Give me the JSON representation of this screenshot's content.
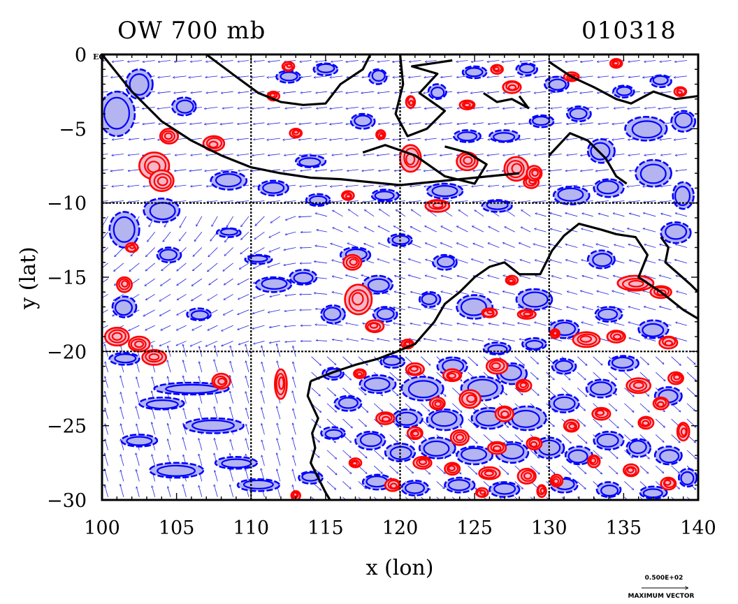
{
  "title_left": "OW 700 mb",
  "title_right": "010318",
  "chart_data": {
    "type": "contour-vector-map",
    "xlabel": "x (lon)",
    "ylabel": "y (lat)",
    "xlim": [
      100,
      140
    ],
    "ylim": [
      -30,
      0
    ],
    "x_ticks": [
      100,
      105,
      110,
      115,
      120,
      125,
      130,
      135,
      140
    ],
    "y_ticks": [
      0,
      -5,
      -10,
      -15,
      -20,
      -25,
      -30
    ],
    "y_tick_labels": [
      "0",
      "−5",
      "−10",
      "−15",
      "−20",
      "−25",
      "−30"
    ],
    "grid_lon": [
      110,
      120,
      130
    ],
    "grid_lat": [
      -10,
      -20
    ],
    "eq_label": "EQ",
    "legend": {
      "vector_value": "0.500E+02",
      "vector_label": "MAXIMUM VECTOR"
    },
    "colors": {
      "positive_contour": "#ff0000",
      "positive_fill": "#f4b8c8",
      "negative_contour": "#0000ff",
      "negative_fill": "#b4b4f0",
      "vectors": "#2020e0",
      "coastline": "#000000"
    },
    "coastlines": [
      [
        [
          100,
          0
        ],
        [
          102,
          -2.5
        ],
        [
          104,
          -4.5
        ],
        [
          106,
          -5.8
        ],
        [
          108,
          -6.8
        ],
        [
          110,
          -7.6
        ],
        [
          112,
          -8.0
        ],
        [
          114,
          -8.3
        ],
        [
          116,
          -8.4
        ],
        [
          118,
          -8.6
        ],
        [
          120,
          -8.8
        ],
        [
          122,
          -8.6
        ],
        [
          124,
          -8.4
        ],
        [
          126,
          -8.2
        ],
        [
          128,
          -8.0
        ]
      ],
      [
        [
          107,
          0
        ],
        [
          109,
          -1.5
        ],
        [
          110.5,
          -2.6
        ],
        [
          112,
          -3.2
        ],
        [
          113.5,
          -3.4
        ],
        [
          115,
          -3.3
        ],
        [
          116,
          -2.0
        ],
        [
          117.5,
          -1.0
        ],
        [
          118,
          0
        ]
      ],
      [
        [
          117.5,
          -6.6
        ],
        [
          119,
          -6.1
        ],
        [
          121,
          -6.8
        ],
        [
          123,
          -8.2
        ],
        [
          125,
          -8.7
        ],
        [
          125.8,
          -7.4
        ],
        [
          124.5,
          -6.6
        ],
        [
          123,
          -6.2
        ]
      ],
      [
        [
          120,
          0
        ],
        [
          120.2,
          -2
        ],
        [
          119.7,
          -4
        ],
        [
          120.5,
          -5.5
        ],
        [
          121.8,
          -5.0
        ],
        [
          123,
          -3.8
        ],
        [
          121.3,
          -2.6
        ],
        [
          122.5,
          -1.3
        ],
        [
          120.8,
          -0.8
        ],
        [
          123.5,
          -0.4
        ]
      ],
      [
        [
          125.6,
          -2.6
        ],
        [
          126.5,
          -3.2
        ],
        [
          127.5,
          -3.0
        ],
        [
          128.6,
          -3.6
        ],
        [
          128.0,
          -2.8
        ]
      ],
      [
        [
          130,
          -0.5
        ],
        [
          131.5,
          -1.5
        ],
        [
          133,
          -2.2
        ],
        [
          134.5,
          -3.0
        ],
        [
          135.5,
          -3.3
        ],
        [
          137,
          -2.5
        ],
        [
          138.5,
          -3.0
        ],
        [
          140,
          -2.8
        ]
      ],
      [
        [
          130,
          -6.8
        ],
        [
          131.4,
          -5.3
        ],
        [
          132.6,
          -5.8
        ],
        [
          133.8,
          -7.0
        ],
        [
          134.5,
          -8.2
        ],
        [
          135.2,
          -8.7
        ]
      ],
      [
        [
          114,
          -22
        ],
        [
          113.8,
          -23
        ],
        [
          114.5,
          -24.5
        ],
        [
          114.1,
          -25.5
        ],
        [
          114.3,
          -26.5
        ],
        [
          114,
          -27.5
        ],
        [
          114.5,
          -28.5
        ],
        [
          115,
          -29.5
        ],
        [
          115.3,
          -30
        ]
      ],
      [
        [
          114,
          -22
        ],
        [
          115.5,
          -21.4
        ],
        [
          117,
          -20.9
        ],
        [
          118.5,
          -20.5
        ],
        [
          119.8,
          -20.0
        ],
        [
          121,
          -19.5
        ],
        [
          122.3,
          -18.0
        ],
        [
          123,
          -16.8
        ],
        [
          124,
          -16.0
        ],
        [
          125,
          -15.0
        ],
        [
          126,
          -14.3
        ],
        [
          127,
          -14.0
        ],
        [
          128,
          -14.8
        ],
        [
          129.4,
          -14.8
        ],
        [
          130.2,
          -13.2
        ],
        [
          131,
          -12.2
        ],
        [
          132,
          -11.4
        ],
        [
          133.5,
          -11.8
        ],
        [
          134.5,
          -12.1
        ],
        [
          135.8,
          -12.3
        ],
        [
          136.6,
          -13.5
        ],
        [
          136,
          -15.0
        ],
        [
          137.5,
          -16.0
        ],
        [
          139,
          -17.2
        ],
        [
          140,
          -17.8
        ]
      ],
      [
        [
          137.5,
          -12.3
        ],
        [
          138,
          -13.0
        ],
        [
          137.8,
          -14.0
        ],
        [
          139.5,
          -15.5
        ],
        [
          140,
          -16.0
        ]
      ]
    ],
    "positive_features": [
      [
        103.5,
        -7.5,
        1.0,
        0.9
      ],
      [
        104,
        -8.5,
        0.8,
        0.7
      ],
      [
        107.5,
        -6.0,
        0.7,
        0.5
      ],
      [
        104.5,
        -5.5,
        0.6,
        0.5
      ],
      [
        101.5,
        -15.5,
        0.5,
        0.5
      ],
      [
        101,
        -19.0,
        0.8,
        0.6
      ],
      [
        102.5,
        -19.5,
        0.7,
        0.5
      ],
      [
        103.5,
        -20.4,
        0.8,
        0.5
      ],
      [
        117.2,
        -16.5,
        0.9,
        1.0
      ],
      [
        116.8,
        -14.0,
        0.6,
        0.5
      ],
      [
        118.3,
        -18.3,
        0.6,
        0.4
      ],
      [
        120.7,
        -7.0,
        0.7,
        0.9
      ],
      [
        124.5,
        -7.2,
        0.7,
        0.6
      ],
      [
        127.8,
        -7.7,
        0.8,
        0.8
      ],
      [
        128.8,
        -8.6,
        0.5,
        0.4
      ],
      [
        129,
        -8.0,
        0.5,
        0.5
      ],
      [
        122.5,
        -10.2,
        0.8,
        0.4
      ],
      [
        127.5,
        -2.2,
        0.6,
        0.4
      ],
      [
        124.5,
        -3.4,
        0.5,
        0.3
      ],
      [
        131.5,
        -1.5,
        0.5,
        0.3
      ],
      [
        112,
        -22.2,
        0.4,
        1.0
      ],
      [
        108,
        -22.0,
        0.6,
        0.5
      ],
      [
        120.5,
        -19.5,
        0.4,
        0.3
      ],
      [
        135.8,
        -15.4,
        1.2,
        0.5
      ],
      [
        137.5,
        -16.0,
        0.7,
        0.4
      ],
      [
        132.5,
        -19.2,
        0.9,
        0.5
      ],
      [
        134.5,
        -19.0,
        0.6,
        0.4
      ],
      [
        138,
        -19.4,
        0.6,
        0.4
      ],
      [
        121,
        -21.2,
        0.6,
        0.4
      ],
      [
        123.5,
        -21.6,
        0.6,
        0.4
      ],
      [
        126.5,
        -21.0,
        0.7,
        0.5
      ],
      [
        128.3,
        -22.3,
        0.5,
        0.4
      ],
      [
        122.5,
        -23.5,
        0.5,
        0.4
      ],
      [
        124.7,
        -23.2,
        0.7,
        0.6
      ],
      [
        127,
        -24.2,
        0.6,
        0.5
      ],
      [
        119,
        -24.5,
        0.6,
        0.4
      ],
      [
        121,
        -25.5,
        0.5,
        0.4
      ],
      [
        124,
        -25.8,
        0.6,
        0.5
      ],
      [
        126.5,
        -26.5,
        0.6,
        0.4
      ],
      [
        129,
        -26.2,
        0.5,
        0.4
      ],
      [
        131.5,
        -25.0,
        0.5,
        0.4
      ],
      [
        133.5,
        -24.2,
        0.6,
        0.4
      ],
      [
        136.5,
        -24.8,
        0.5,
        0.4
      ],
      [
        139,
        -25.4,
        0.4,
        0.6
      ],
      [
        137.5,
        -23.5,
        0.5,
        0.4
      ],
      [
        136,
        -22.3,
        0.8,
        0.5
      ],
      [
        138.5,
        -21.8,
        0.5,
        0.4
      ],
      [
        121.5,
        -27.5,
        0.6,
        0.4
      ],
      [
        123.5,
        -27.9,
        0.5,
        0.4
      ],
      [
        126,
        -28.2,
        0.7,
        0.4
      ],
      [
        128.5,
        -28.4,
        0.6,
        0.5
      ],
      [
        130.5,
        -28.7,
        0.4,
        0.4
      ],
      [
        133,
        -27.4,
        0.4,
        0.4
      ],
      [
        135.5,
        -28.0,
        0.5,
        0.4
      ],
      [
        138,
        -28.9,
        0.5,
        0.4
      ],
      [
        119.5,
        -29.0,
        0.5,
        0.4
      ],
      [
        117,
        -27.5,
        0.4,
        0.3
      ],
      [
        117.3,
        -21.5,
        0.4,
        0.3
      ],
      [
        113,
        -29.7,
        0.3,
        0.3
      ],
      [
        125.5,
        -29.5,
        0.4,
        0.3
      ],
      [
        129.5,
        -29.4,
        0.3,
        0.4
      ],
      [
        127.5,
        -15.2,
        0.4,
        0.3
      ],
      [
        128.5,
        -17.5,
        0.6,
        0.3
      ],
      [
        126,
        -17.4,
        0.5,
        0.3
      ],
      [
        130.4,
        -18.8,
        0.3,
        0.3
      ],
      [
        113,
        -5.3,
        0.4,
        0.3
      ],
      [
        112.5,
        -0.8,
        0.4,
        0.3
      ],
      [
        111.5,
        -2.8,
        0.4,
        0.3
      ],
      [
        102,
        -13.0,
        0.4,
        0.3
      ],
      [
        116.5,
        -9.5,
        0.4,
        0.3
      ],
      [
        120.7,
        -3.2,
        0.3,
        0.4
      ],
      [
        118.7,
        -5.4,
        0.3,
        0.3
      ],
      [
        126.5,
        -1.0,
        0.4,
        0.3
      ],
      [
        138.8,
        -2.5,
        0.4,
        0.3
      ],
      [
        134.5,
        -0.6,
        0.4,
        0.3
      ]
    ],
    "negative_features": [
      [
        101,
        -4.0,
        1.2,
        1.5
      ],
      [
        102.5,
        -2.0,
        0.9,
        1.0
      ],
      [
        105.5,
        -3.5,
        0.8,
        0.6
      ],
      [
        108.5,
        -8.5,
        1.2,
        0.6
      ],
      [
        111.5,
        -9.0,
        1.0,
        0.5
      ],
      [
        104,
        -10.5,
        1.2,
        0.8
      ],
      [
        101.5,
        -11.8,
        1.0,
        1.2
      ],
      [
        104.5,
        -13.5,
        0.8,
        0.5
      ],
      [
        101.5,
        -17.0,
        0.8,
        0.7
      ],
      [
        111.5,
        -15.5,
        1.2,
        0.5
      ],
      [
        113.5,
        -15.0,
        0.9,
        0.5
      ],
      [
        117,
        -13.5,
        1.0,
        0.5
      ],
      [
        118.5,
        -15.5,
        1.0,
        0.6
      ],
      [
        119,
        -17.5,
        0.8,
        0.5
      ],
      [
        115.5,
        -17.5,
        0.8,
        0.6
      ],
      [
        123,
        -14.0,
        0.8,
        0.5
      ],
      [
        125,
        -17.0,
        1.2,
        0.8
      ],
      [
        122,
        -16.5,
        0.7,
        0.5
      ],
      [
        129,
        -16.5,
        1.2,
        0.7
      ],
      [
        131,
        -18.5,
        1.0,
        0.6
      ],
      [
        134,
        -17.5,
        0.9,
        0.5
      ],
      [
        137,
        -18.5,
        1.0,
        0.6
      ],
      [
        133.5,
        -13.8,
        0.9,
        0.6
      ],
      [
        138.5,
        -12.0,
        1.0,
        0.7
      ],
      [
        131.5,
        -9.5,
        1.2,
        0.6
      ],
      [
        134,
        -9.0,
        1.0,
        0.6
      ],
      [
        137,
        -8.0,
        1.2,
        0.9
      ],
      [
        139,
        -9.5,
        0.7,
        0.9
      ],
      [
        133.5,
        -6.5,
        0.9,
        0.8
      ],
      [
        136.5,
        -5.0,
        1.4,
        0.8
      ],
      [
        139,
        -4.5,
        0.8,
        0.7
      ],
      [
        132,
        -4.0,
        0.8,
        0.5
      ],
      [
        130.5,
        -2.0,
        0.8,
        0.5
      ],
      [
        135,
        -2.5,
        0.7,
        0.4
      ],
      [
        137.5,
        -1.8,
        0.7,
        0.4
      ],
      [
        124.5,
        -5.5,
        0.9,
        0.4
      ],
      [
        127,
        -5.5,
        1.0,
        0.4
      ],
      [
        129.5,
        -4.5,
        0.8,
        0.4
      ],
      [
        123,
        -9.2,
        1.2,
        0.5
      ],
      [
        126.5,
        -10.2,
        1.0,
        0.4
      ],
      [
        119,
        -9.5,
        0.9,
        0.4
      ],
      [
        114.5,
        -9.8,
        0.8,
        0.4
      ],
      [
        114,
        -7.2,
        1.0,
        0.4
      ],
      [
        112.5,
        -1.5,
        0.8,
        0.4
      ],
      [
        115,
        -1.0,
        0.8,
        0.4
      ],
      [
        117.5,
        -4.5,
        0.8,
        0.5
      ],
      [
        118.5,
        -1.5,
        0.6,
        0.5
      ],
      [
        122.5,
        -2.5,
        0.6,
        0.5
      ],
      [
        125,
        -1.2,
        0.8,
        0.4
      ],
      [
        128.5,
        -1.0,
        0.7,
        0.4
      ],
      [
        101.5,
        -20.5,
        1.0,
        0.4
      ],
      [
        106,
        -22.5,
        2.5,
        0.4
      ],
      [
        104,
        -23.5,
        1.5,
        0.4
      ],
      [
        107.5,
        -25.0,
        2.0,
        0.5
      ],
      [
        102.5,
        -26.0,
        1.2,
        0.4
      ],
      [
        105,
        -28.0,
        1.8,
        0.5
      ],
      [
        109,
        -27.5,
        1.4,
        0.4
      ],
      [
        110.5,
        -29.0,
        1.4,
        0.4
      ],
      [
        114,
        -28.5,
        0.8,
        0.4
      ],
      [
        115.5,
        -25.5,
        0.8,
        0.4
      ],
      [
        116.5,
        -23.5,
        0.9,
        0.5
      ],
      [
        115.5,
        -21.5,
        0.7,
        0.4
      ],
      [
        118.5,
        -22.2,
        1.2,
        0.6
      ],
      [
        121.5,
        -22.5,
        1.4,
        0.8
      ],
      [
        123.5,
        -21.0,
        1.0,
        0.6
      ],
      [
        125.5,
        -22.5,
        1.4,
        0.8
      ],
      [
        127.5,
        -21.5,
        1.0,
        0.7
      ],
      [
        128.5,
        -24.5,
        1.3,
        0.8
      ],
      [
        126,
        -24.5,
        1.2,
        0.7
      ],
      [
        123,
        -24.6,
        1.2,
        0.7
      ],
      [
        120.5,
        -24.5,
        1.0,
        0.6
      ],
      [
        118,
        -26.0,
        1.0,
        0.6
      ],
      [
        120,
        -26.8,
        1.0,
        0.6
      ],
      [
        122.5,
        -26.5,
        1.2,
        0.7
      ],
      [
        125,
        -27.0,
        1.2,
        0.6
      ],
      [
        127.5,
        -26.8,
        1.1,
        0.7
      ],
      [
        130,
        -26.5,
        1.0,
        0.7
      ],
      [
        132,
        -27.0,
        0.9,
        0.6
      ],
      [
        134,
        -26.0,
        1.0,
        0.6
      ],
      [
        136,
        -26.5,
        0.8,
        0.6
      ],
      [
        138,
        -27.0,
        0.9,
        0.6
      ],
      [
        131,
        -23.5,
        1.0,
        0.6
      ],
      [
        133.5,
        -22.5,
        1.0,
        0.6
      ],
      [
        138,
        -23.0,
        0.9,
        0.6
      ],
      [
        135,
        -20.8,
        1.0,
        0.5
      ],
      [
        131,
        -21.0,
        0.8,
        0.5
      ],
      [
        118.5,
        -28.8,
        1.0,
        0.5
      ],
      [
        121,
        -29.2,
        0.9,
        0.5
      ],
      [
        124,
        -29.0,
        1.0,
        0.5
      ],
      [
        127,
        -29.3,
        1.0,
        0.5
      ],
      [
        131,
        -29.0,
        0.9,
        0.5
      ],
      [
        134,
        -29.3,
        0.8,
        0.5
      ],
      [
        137,
        -29.5,
        0.9,
        0.4
      ],
      [
        139.3,
        -28.5,
        0.6,
        0.6
      ],
      [
        119.5,
        -20.7,
        0.8,
        0.4
      ],
      [
        126.5,
        -19.8,
        0.9,
        0.4
      ],
      [
        129,
        -19.5,
        0.8,
        0.4
      ],
      [
        120,
        -12.5,
        0.8,
        0.4
      ],
      [
        110.5,
        -13.8,
        0.9,
        0.3
      ],
      [
        106.5,
        -17.5,
        0.8,
        0.4
      ],
      [
        108.5,
        -12.0,
        0.8,
        0.3
      ]
    ]
  }
}
